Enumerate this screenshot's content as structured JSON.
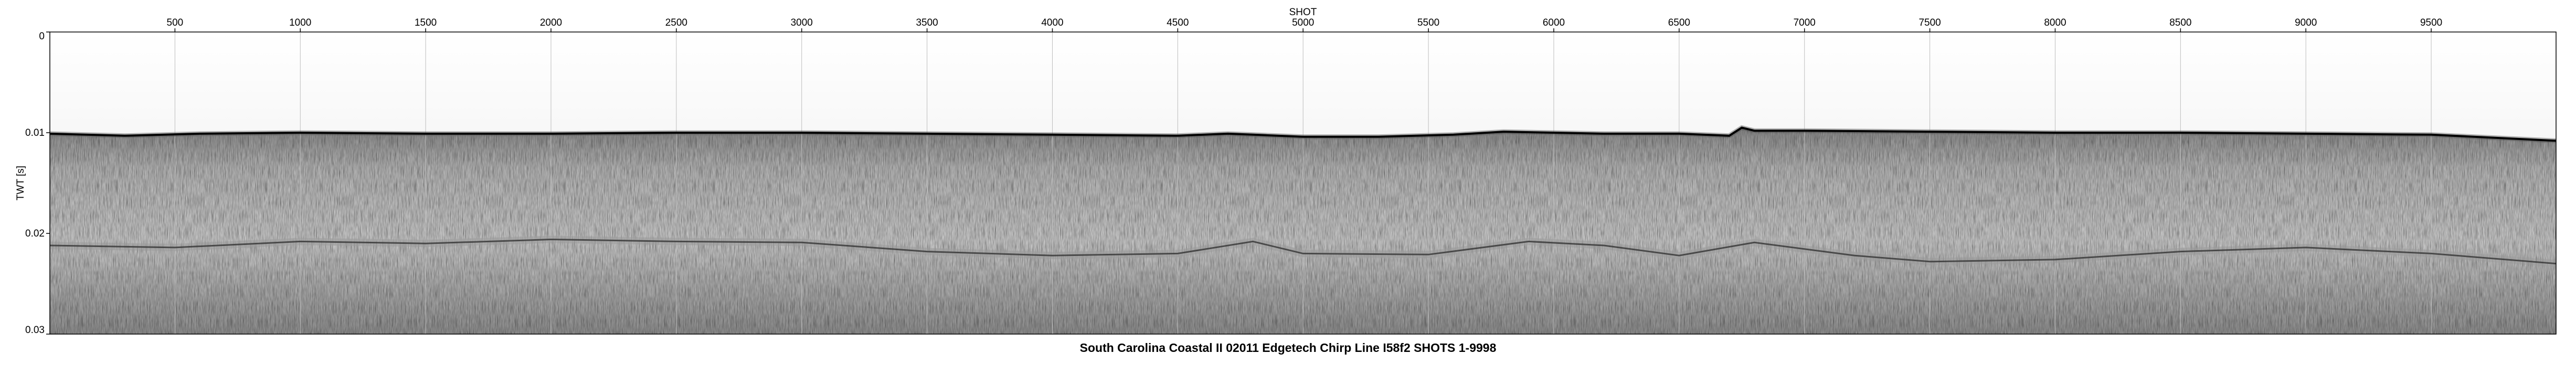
{
  "chart_data": {
    "type": "heatmap",
    "title": "South Carolina Coastal II 02011 Edgetech Chirp Line I58f2 SHOTS 1-9998",
    "xlabel": "SHOT",
    "ylabel": "TWT [s]",
    "xlim": [
      1,
      9998
    ],
    "ylim": [
      0,
      0.03
    ],
    "x_ticks": [
      500,
      1000,
      1500,
      2000,
      2500,
      3000,
      3500,
      4000,
      4500,
      5000,
      5500,
      6000,
      6500,
      7000,
      7500,
      8000,
      8500,
      9000,
      9500
    ],
    "x_tick_labels": [
      "500",
      "1000",
      "1500",
      "2000",
      "2500",
      "3000",
      "3500",
      "4000",
      "4500",
      "5000",
      "5500",
      "6000",
      "6500",
      "7000",
      "7500",
      "8000",
      "8500",
      "9000",
      "9500"
    ],
    "y_ticks": [
      0,
      0.01,
      0.02,
      0.03
    ],
    "y_tick_labels": [
      "0",
      "0.01",
      "0.02",
      "0.03"
    ],
    "vertical_gridlines": true,
    "colormap": "grayscale",
    "seafloor_reflector": {
      "shot": [
        1,
        300,
        600,
        1000,
        1500,
        2000,
        2500,
        3000,
        3500,
        4000,
        4500,
        4700,
        4800,
        5000,
        5300,
        5600,
        5800,
        6000,
        6200,
        6500,
        6700,
        6750,
        6800,
        7000,
        7500,
        8000,
        8500,
        9000,
        9500,
        9998
      ],
      "twt": [
        0.0101,
        0.0103,
        0.0101,
        0.01,
        0.0101,
        0.0101,
        0.01,
        0.01,
        0.0101,
        0.0102,
        0.0103,
        0.0101,
        0.0102,
        0.0104,
        0.0104,
        0.0102,
        0.0099,
        0.01,
        0.0101,
        0.0101,
        0.0103,
        0.0095,
        0.0098,
        0.0098,
        0.0099,
        0.01,
        0.01,
        0.0101,
        0.0102,
        0.0108
      ]
    },
    "subbottom_reflector": {
      "shot": [
        1,
        500,
        1000,
        1500,
        2000,
        2500,
        3000,
        3500,
        4000,
        4500,
        4800,
        5000,
        5500,
        5900,
        6200,
        6500,
        6800,
        7200,
        7500,
        8000,
        8500,
        9000,
        9500,
        9998
      ],
      "twt": [
        0.0212,
        0.0214,
        0.0208,
        0.021,
        0.0206,
        0.0208,
        0.0209,
        0.0218,
        0.0222,
        0.022,
        0.0208,
        0.022,
        0.0221,
        0.0208,
        0.0212,
        0.0222,
        0.0209,
        0.0222,
        0.0228,
        0.0226,
        0.0218,
        0.0214,
        0.022,
        0.023
      ]
    }
  }
}
